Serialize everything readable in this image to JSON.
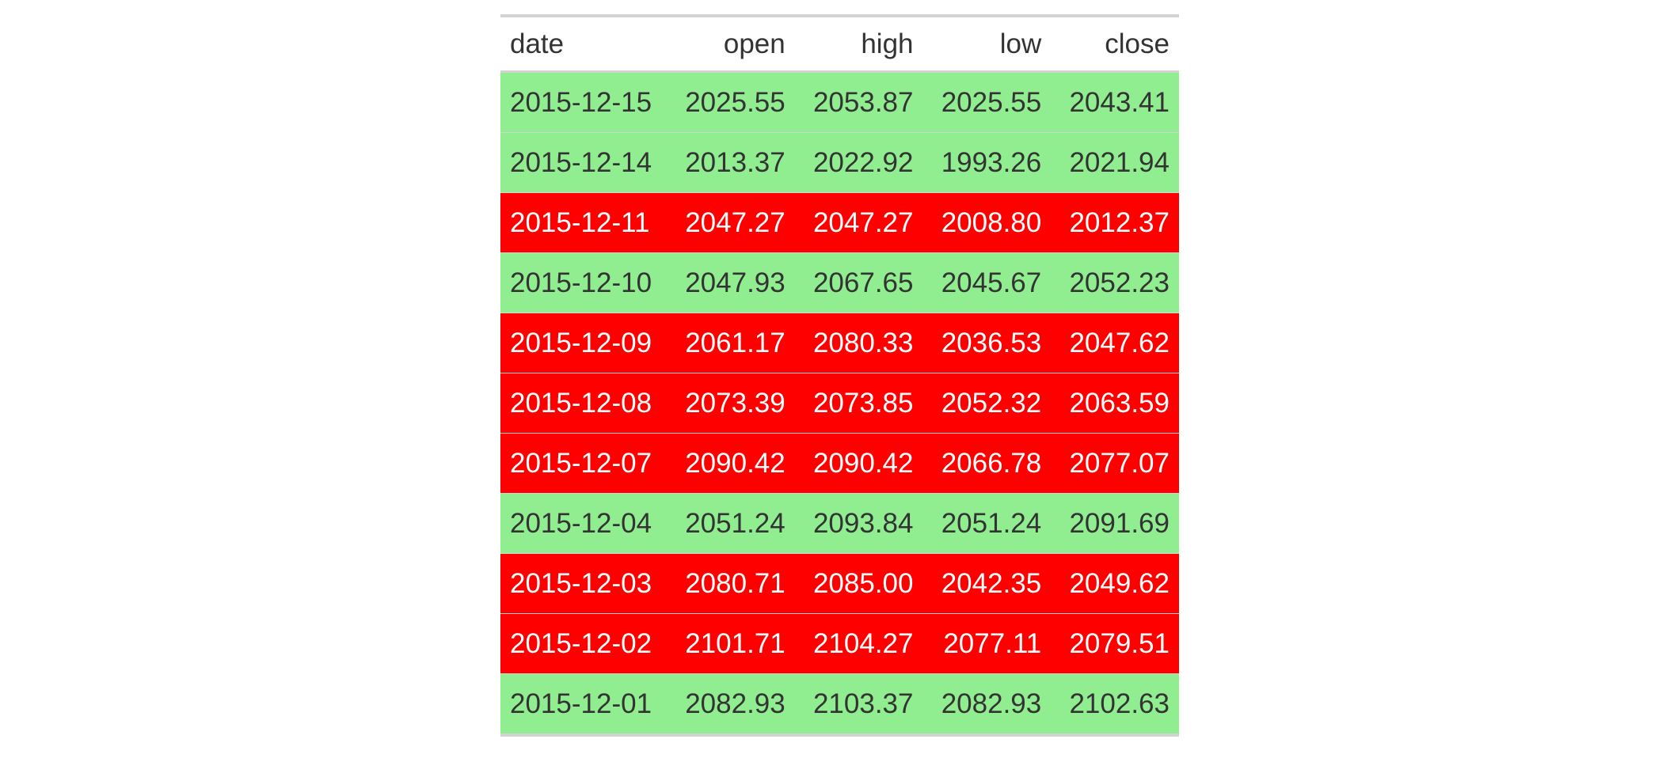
{
  "colors": {
    "up_row_bg": "#90EE90",
    "down_row_bg": "#FF0000",
    "up_text": "#333333",
    "down_text": "#FFFFFF",
    "rule": "#D3D3D3"
  },
  "chart_data": {
    "type": "table",
    "columns": [
      "date",
      "open",
      "high",
      "low",
      "close"
    ],
    "rows": [
      {
        "date": "2015-12-15",
        "open": "2025.55",
        "high": "2053.87",
        "low": "2025.55",
        "close": "2043.41",
        "direction": "up"
      },
      {
        "date": "2015-12-14",
        "open": "2013.37",
        "high": "2022.92",
        "low": "1993.26",
        "close": "2021.94",
        "direction": "up"
      },
      {
        "date": "2015-12-11",
        "open": "2047.27",
        "high": "2047.27",
        "low": "2008.80",
        "close": "2012.37",
        "direction": "down"
      },
      {
        "date": "2015-12-10",
        "open": "2047.93",
        "high": "2067.65",
        "low": "2045.67",
        "close": "2052.23",
        "direction": "up"
      },
      {
        "date": "2015-12-09",
        "open": "2061.17",
        "high": "2080.33",
        "low": "2036.53",
        "close": "2047.62",
        "direction": "down"
      },
      {
        "date": "2015-12-08",
        "open": "2073.39",
        "high": "2073.85",
        "low": "2052.32",
        "close": "2063.59",
        "direction": "down"
      },
      {
        "date": "2015-12-07",
        "open": "2090.42",
        "high": "2090.42",
        "low": "2066.78",
        "close": "2077.07",
        "direction": "down"
      },
      {
        "date": "2015-12-04",
        "open": "2051.24",
        "high": "2093.84",
        "low": "2051.24",
        "close": "2091.69",
        "direction": "up"
      },
      {
        "date": "2015-12-03",
        "open": "2080.71",
        "high": "2085.00",
        "low": "2042.35",
        "close": "2049.62",
        "direction": "down"
      },
      {
        "date": "2015-12-02",
        "open": "2101.71",
        "high": "2104.27",
        "low": "2077.11",
        "close": "2079.51",
        "direction": "down"
      },
      {
        "date": "2015-12-01",
        "open": "2082.93",
        "high": "2103.37",
        "low": "2082.93",
        "close": "2102.63",
        "direction": "up"
      }
    ]
  }
}
